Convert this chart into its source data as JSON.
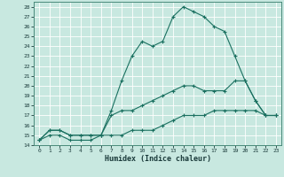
{
  "xlabel": "Humidex (Indice chaleur)",
  "xlim": [
    -0.5,
    23.5
  ],
  "ylim": [
    14,
    28.5
  ],
  "yticks": [
    14,
    15,
    16,
    17,
    18,
    19,
    20,
    21,
    22,
    23,
    24,
    25,
    26,
    27,
    28
  ],
  "xticks": [
    0,
    1,
    2,
    3,
    4,
    5,
    6,
    7,
    8,
    9,
    10,
    11,
    12,
    13,
    14,
    15,
    16,
    17,
    18,
    19,
    20,
    21,
    22,
    23
  ],
  "bg_color": "#c8e8e0",
  "line_color": "#1a7060",
  "grid_color": "#ffffff",
  "series": [
    {
      "x": [
        0,
        1,
        2,
        3,
        4,
        5,
        6,
        7,
        8,
        9,
        10,
        11,
        12,
        13,
        14,
        15,
        16,
        17,
        18,
        19,
        20,
        21,
        22,
        23
      ],
      "y": [
        14.5,
        15.5,
        15.5,
        15.0,
        15.0,
        15.0,
        15.0,
        17.5,
        20.5,
        23.0,
        24.5,
        24.0,
        24.5,
        27.0,
        28.0,
        27.5,
        27.0,
        26.0,
        25.5,
        23.0,
        20.5,
        18.5,
        17.0,
        17.0
      ]
    },
    {
      "x": [
        0,
        1,
        2,
        3,
        4,
        5,
        6,
        7,
        8,
        9,
        10,
        11,
        12,
        13,
        14,
        15,
        16,
        17,
        18,
        19,
        20,
        21,
        22,
        23
      ],
      "y": [
        14.5,
        15.5,
        15.5,
        15.0,
        15.0,
        15.0,
        15.0,
        17.0,
        17.5,
        17.5,
        18.0,
        18.5,
        19.0,
        19.5,
        20.0,
        20.0,
        19.5,
        19.5,
        19.5,
        20.5,
        20.5,
        18.5,
        17.0,
        17.0
      ]
    },
    {
      "x": [
        0,
        1,
        2,
        3,
        4,
        5,
        6,
        7,
        8,
        9,
        10,
        11,
        12,
        13,
        14,
        15,
        16,
        17,
        18,
        19,
        20,
        21,
        22,
        23
      ],
      "y": [
        14.5,
        15.0,
        15.0,
        14.5,
        14.5,
        14.5,
        15.0,
        15.0,
        15.0,
        15.5,
        15.5,
        15.5,
        16.0,
        16.5,
        17.0,
        17.0,
        17.0,
        17.5,
        17.5,
        17.5,
        17.5,
        17.5,
        17.0,
        17.0
      ]
    }
  ]
}
